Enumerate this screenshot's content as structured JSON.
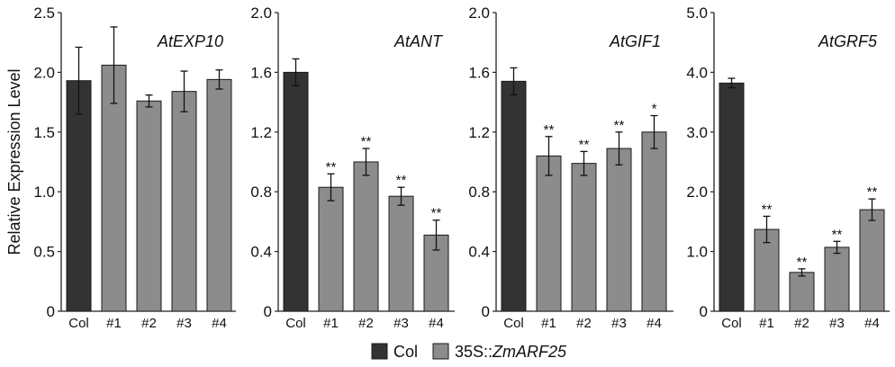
{
  "ylabel": "Relative Expression Level",
  "legend": {
    "items": [
      {
        "label_prefix": "",
        "label_italic": "Col",
        "italic": false,
        "color": "#333333"
      },
      {
        "label_prefix": "35S::",
        "label_italic": "ZmARF25",
        "italic": true,
        "color": "#8c8c8c"
      }
    ]
  },
  "colors": {
    "col": "#333333",
    "transgenic": "#8c8c8c",
    "edge": "#1a1a1a"
  },
  "chart_data": [
    {
      "type": "bar",
      "title": "AtEXP10",
      "categories": [
        "Col",
        "#1",
        "#2",
        "#3",
        "#4"
      ],
      "values": [
        1.93,
        2.06,
        1.76,
        1.84,
        1.94
      ],
      "errors": [
        0.28,
        0.32,
        0.05,
        0.17,
        0.08
      ],
      "significance": [
        "",
        "",
        "",
        "",
        ""
      ],
      "ylim": [
        0,
        2.5
      ],
      "yticks": [
        "0",
        "0.5",
        "1.0",
        "1.5",
        "2.0",
        "2.5"
      ],
      "ytick_values": [
        0,
        0.5,
        1.0,
        1.5,
        2.0,
        2.5
      ]
    },
    {
      "type": "bar",
      "title": "AtANT",
      "categories": [
        "Col",
        "#1",
        "#2",
        "#3",
        "#4"
      ],
      "values": [
        1.6,
        0.83,
        1.0,
        0.77,
        0.51
      ],
      "errors": [
        0.09,
        0.09,
        0.09,
        0.06,
        0.1
      ],
      "significance": [
        "",
        "**",
        "**",
        "**",
        "**"
      ],
      "ylim": [
        0,
        2.0
      ],
      "yticks": [
        "0",
        "0.4",
        "0.8",
        "1.2",
        "1.6",
        "2.0"
      ],
      "ytick_values": [
        0,
        0.4,
        0.8,
        1.2,
        1.6,
        2.0
      ]
    },
    {
      "type": "bar",
      "title": "AtGIF1",
      "categories": [
        "Col",
        "#1",
        "#2",
        "#3",
        "#4"
      ],
      "values": [
        1.54,
        1.04,
        0.99,
        1.09,
        1.2
      ],
      "errors": [
        0.09,
        0.13,
        0.08,
        0.11,
        0.11
      ],
      "significance": [
        "",
        "**",
        "**",
        "**",
        "*"
      ],
      "ylim": [
        0,
        2.0
      ],
      "yticks": [
        "0",
        "0.4",
        "0.8",
        "1.2",
        "1.6",
        "2.0"
      ],
      "ytick_values": [
        0,
        0.4,
        0.8,
        1.2,
        1.6,
        2.0
      ]
    },
    {
      "type": "bar",
      "title": "AtGRF5",
      "categories": [
        "Col",
        "#1",
        "#2",
        "#3",
        "#4"
      ],
      "values": [
        3.82,
        1.37,
        0.65,
        1.07,
        1.7
      ],
      "errors": [
        0.08,
        0.22,
        0.06,
        0.1,
        0.18
      ],
      "significance": [
        "",
        "**",
        "**",
        "**",
        "**"
      ],
      "ylim": [
        0,
        5.0
      ],
      "yticks": [
        "0",
        "1.0",
        "2.0",
        "3.0",
        "4.0",
        "5.0"
      ],
      "ytick_values": [
        0,
        1.0,
        2.0,
        3.0,
        4.0,
        5.0
      ]
    }
  ]
}
